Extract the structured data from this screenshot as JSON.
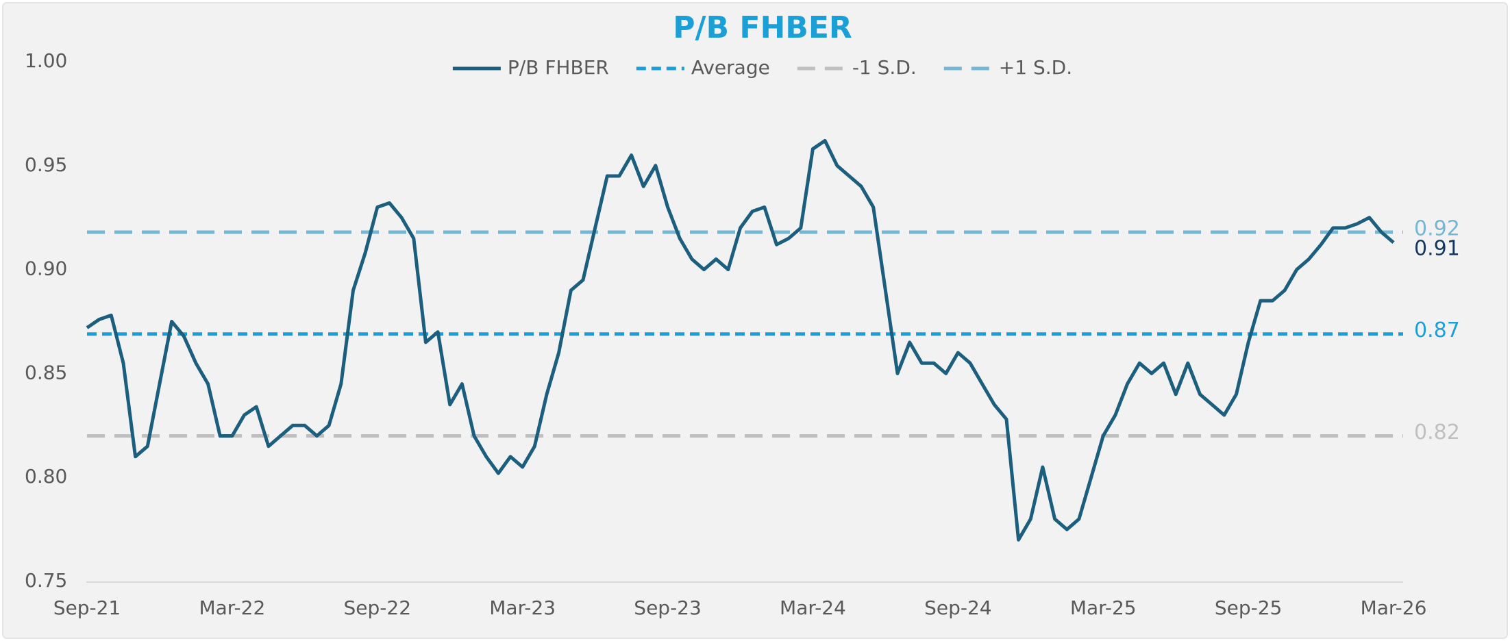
{
  "chart_data": {
    "type": "line",
    "title": "P/B FHBER",
    "categories": [
      "Sep-21",
      null,
      null,
      null,
      null,
      null,
      null,
      null,
      null,
      null,
      null,
      null,
      "Mar-22",
      null,
      null,
      null,
      null,
      null,
      null,
      null,
      null,
      null,
      null,
      null,
      "Sep-22",
      null,
      null,
      null,
      null,
      null,
      null,
      null,
      null,
      null,
      null,
      null,
      "Mar-23",
      null,
      null,
      null,
      null,
      null,
      null,
      null,
      null,
      null,
      null,
      null,
      "Sep-23",
      null,
      null,
      null,
      null,
      null,
      null,
      null,
      null,
      null,
      null,
      null,
      "Mar-24",
      null,
      null,
      null,
      null,
      null,
      null,
      null,
      null,
      null,
      null,
      null,
      "Sep-24",
      null,
      null,
      null,
      null,
      null,
      null,
      null,
      null,
      null,
      null,
      null,
      "Mar-25",
      null,
      null,
      null,
      null,
      null,
      null,
      null,
      null,
      null,
      null,
      null,
      "Sep-25",
      null,
      null,
      null,
      null,
      null,
      null,
      null,
      null,
      null,
      null,
      null,
      "Mar-26"
    ],
    "series": [
      {
        "name": "P/B FHBER",
        "color": "#1b5e7e",
        "end_label": "0.91",
        "end_label_color": "#17365d",
        "values": [
          0.872,
          0.876,
          0.878,
          0.855,
          0.81,
          0.815,
          0.845,
          0.875,
          0.868,
          0.855,
          0.845,
          0.82,
          0.82,
          0.83,
          0.834,
          0.815,
          0.82,
          0.825,
          0.825,
          0.82,
          0.825,
          0.845,
          0.89,
          0.908,
          0.93,
          0.932,
          0.925,
          0.915,
          0.865,
          0.87,
          0.835,
          0.845,
          0.82,
          0.81,
          0.802,
          0.81,
          0.805,
          0.815,
          0.84,
          0.86,
          0.89,
          0.895,
          0.92,
          0.945,
          0.945,
          0.955,
          0.94,
          0.95,
          0.93,
          0.915,
          0.905,
          0.9,
          0.905,
          0.9,
          0.92,
          0.928,
          0.93,
          0.912,
          0.915,
          0.92,
          0.958,
          0.962,
          0.95,
          0.945,
          0.94,
          0.93,
          0.89,
          0.85,
          0.865,
          0.855,
          0.855,
          0.85,
          0.86,
          0.855,
          0.845,
          0.835,
          0.828,
          0.77,
          0.78,
          0.805,
          0.78,
          0.775,
          0.78,
          0.8,
          0.82,
          0.83,
          0.845,
          0.855,
          0.85,
          0.855,
          0.84,
          0.855,
          0.84,
          0.835,
          0.83,
          0.84,
          0.865,
          0.885,
          0.885,
          0.89,
          0.9,
          0.905,
          0.912,
          0.92,
          0.92,
          0.922,
          0.925,
          0.918,
          0.913
        ]
      }
    ],
    "reference_lines": [
      {
        "name": "Average",
        "color": "#1a9fd6",
        "dash": "short",
        "value": 0.869,
        "value_label": "0.87"
      },
      {
        "name": "-1 S.D.",
        "color": "#bfbfbf",
        "dash": "long",
        "value": 0.82,
        "value_label": "0.82"
      },
      {
        "name": "+1 S.D.",
        "color": "#74b6d4",
        "dash": "long",
        "value": 0.918,
        "value_label": "0.92"
      }
    ],
    "ylim": [
      0.75,
      1.0
    ],
    "yticks": [
      0.75,
      {
        "value": 0.8,
        "label": "0.80"
      },
      0.85,
      {
        "value": 0.9,
        "label": "0.90"
      },
      0.95,
      {
        "value": 1.0,
        "label": "1.00"
      }
    ],
    "grid": false,
    "legend": "top"
  }
}
